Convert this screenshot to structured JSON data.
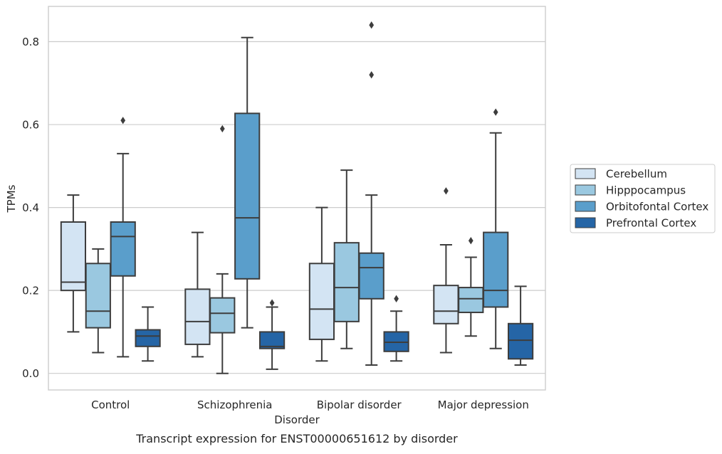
{
  "chart_data": {
    "type": "box",
    "title": "",
    "caption": "Transcript expression for ENST00000651612 by disorder",
    "xlabel": "Disorder",
    "ylabel": "TPMs",
    "ylim": [
      -0.04,
      0.885
    ],
    "yticks": [
      0.0,
      0.2,
      0.4,
      0.6,
      0.8
    ],
    "ytick_labels": [
      "0.0",
      "0.2",
      "0.4",
      "0.6",
      "0.8"
    ],
    "grid": "horizontal",
    "legend_position": "right",
    "categories": [
      "Control",
      "Schizophrenia",
      "Bipolar disorder",
      "Major depression"
    ],
    "series": [
      {
        "name": "Cerebellum",
        "color": "#d3e4f3",
        "boxes": [
          {
            "whisker_low": 0.1,
            "q1": 0.2,
            "median": 0.22,
            "q3": 0.365,
            "whisker_high": 0.43,
            "outliers": []
          },
          {
            "whisker_low": 0.04,
            "q1": 0.07,
            "median": 0.125,
            "q3": 0.203,
            "whisker_high": 0.34,
            "outliers": []
          },
          {
            "whisker_low": 0.03,
            "q1": 0.082,
            "median": 0.155,
            "q3": 0.265,
            "whisker_high": 0.4,
            "outliers": []
          },
          {
            "whisker_low": 0.05,
            "q1": 0.12,
            "median": 0.15,
            "q3": 0.212,
            "whisker_high": 0.31,
            "outliers": [
              0.44
            ]
          }
        ]
      },
      {
        "name": "Hipppocampus",
        "color": "#9ac8e0",
        "boxes": [
          {
            "whisker_low": 0.05,
            "q1": 0.11,
            "median": 0.15,
            "q3": 0.265,
            "whisker_high": 0.3,
            "outliers": []
          },
          {
            "whisker_low": 0.0,
            "q1": 0.098,
            "median": 0.145,
            "q3": 0.182,
            "whisker_high": 0.24,
            "outliers": [
              0.59
            ]
          },
          {
            "whisker_low": 0.06,
            "q1": 0.125,
            "median": 0.207,
            "q3": 0.315,
            "whisker_high": 0.49,
            "outliers": []
          },
          {
            "whisker_low": 0.09,
            "q1": 0.147,
            "median": 0.18,
            "q3": 0.207,
            "whisker_high": 0.28,
            "outliers": [
              0.32
            ]
          }
        ]
      },
      {
        "name": "Orbitofontal Cortex",
        "color": "#5a9ecb",
        "boxes": [
          {
            "whisker_low": 0.04,
            "q1": 0.235,
            "median": 0.33,
            "q3": 0.365,
            "whisker_high": 0.53,
            "outliers": [
              0.61
            ]
          },
          {
            "whisker_low": 0.11,
            "q1": 0.228,
            "median": 0.375,
            "q3": 0.627,
            "whisker_high": 0.81,
            "outliers": []
          },
          {
            "whisker_low": 0.02,
            "q1": 0.18,
            "median": 0.255,
            "q3": 0.29,
            "whisker_high": 0.43,
            "outliers": [
              0.72,
              0.84
            ]
          },
          {
            "whisker_low": 0.06,
            "q1": 0.16,
            "median": 0.2,
            "q3": 0.34,
            "whisker_high": 0.58,
            "outliers": [
              0.63
            ]
          }
        ]
      },
      {
        "name": "Prefrontal Cortex",
        "color": "#2565a6",
        "boxes": [
          {
            "whisker_low": 0.03,
            "q1": 0.065,
            "median": 0.09,
            "q3": 0.105,
            "whisker_high": 0.16,
            "outliers": []
          },
          {
            "whisker_low": 0.01,
            "q1": 0.06,
            "median": 0.065,
            "q3": 0.1,
            "whisker_high": 0.16,
            "outliers": [
              0.17
            ]
          },
          {
            "whisker_low": 0.03,
            "q1": 0.053,
            "median": 0.075,
            "q3": 0.1,
            "whisker_high": 0.15,
            "outliers": [
              0.18
            ]
          },
          {
            "whisker_low": 0.02,
            "q1": 0.035,
            "median": 0.08,
            "q3": 0.12,
            "whisker_high": 0.21,
            "outliers": []
          }
        ]
      }
    ]
  }
}
